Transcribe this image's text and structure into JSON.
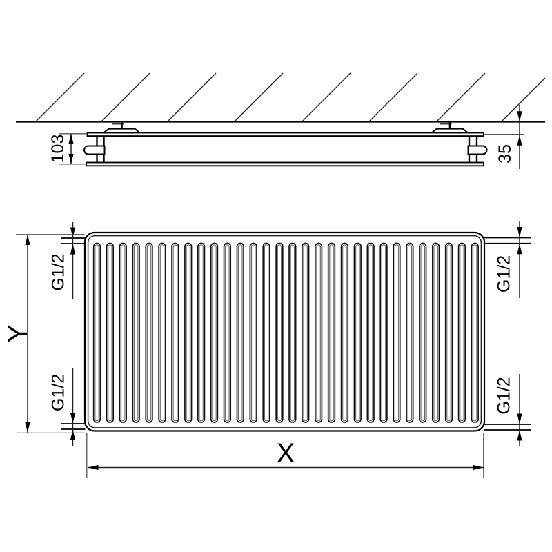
{
  "drawing": {
    "kind": "radiator technical dimension drawing",
    "views": {
      "top_view": {
        "name": "wall mounting cross-section",
        "dimensions": {
          "depth": "103",
          "wall_clearance": "35"
        }
      },
      "front_view": {
        "name": "front elevation",
        "dimensions": {
          "height": "Y",
          "width": "X",
          "connections": {
            "top_left": "G1/2",
            "top_right": "G1/2",
            "bottom_left": "G1/2",
            "bottom_right": "G1/2"
          }
        },
        "fin_count": 30
      }
    },
    "colors": {
      "line": "#000000",
      "thin_line": "#333333",
      "extension_line": "#555555",
      "background": "#ffffff"
    }
  }
}
